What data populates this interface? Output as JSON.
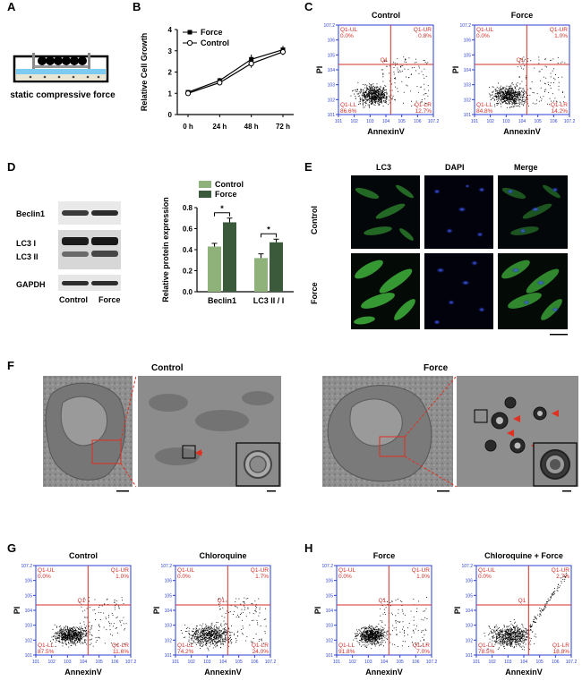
{
  "panels": {
    "A": {
      "letter": "A",
      "caption": "static compressive force"
    },
    "B": {
      "letter": "B"
    },
    "C": {
      "letter": "C"
    },
    "D": {
      "letter": "D",
      "blot_rows": [
        "Beclin1",
        "LC3 I",
        "LC3 II",
        "GAPDH"
      ],
      "lanes": [
        "Control",
        "Force"
      ]
    },
    "E": {
      "letter": "E",
      "columns": [
        "LC3",
        "DAPI",
        "Merge"
      ],
      "rows": [
        "Control",
        "Force"
      ]
    },
    "F": {
      "letter": "F",
      "groups": [
        "Control",
        "Force"
      ]
    },
    "G": {
      "letter": "G"
    },
    "H": {
      "letter": "H"
    }
  },
  "flow": {
    "xlabel": "AnnexinV",
    "ylabel": "PI",
    "gate_label": "Q1",
    "ticks": [
      "10^1",
      "10^2",
      "10^3",
      "10^4",
      "10^5",
      "10^6",
      "10^7.2"
    ],
    "plots": [
      {
        "id": "c1",
        "title": "Control",
        "UL": "Q1-UL\n0.0%",
        "UR": "Q1-UR\n0.8%",
        "LL": "Q1-LL\n86.6%",
        "LR": "Q1-LR\n12.7%"
      },
      {
        "id": "c2",
        "title": "Force",
        "UL": "Q1-UL\n0.0%",
        "UR": "Q1-UR\n1.0%",
        "LL": "Q1-LL\n84.8%",
        "LR": "Q1-LR\n14.2%"
      },
      {
        "id": "g1",
        "title": "Control",
        "UL": "Q1-UL\n0.0%",
        "UR": "Q1-UR\n1.0%",
        "LL": "Q1-LL\n87.5%",
        "LR": "Q1-LR\n11.6%"
      },
      {
        "id": "g2",
        "title": "Chloroquine",
        "UL": "Q1-UL\n0.0%",
        "UR": "Q1-UR\n1.7%",
        "LL": "Q1-LL\n74.2%",
        "LR": "Q1-LR\n24.0%"
      },
      {
        "id": "h1",
        "title": "Force",
        "UL": "Q1-UL\n0.0%",
        "UR": "Q1-UR\n1.0%",
        "LL": "Q1-LL\n91.8%",
        "LR": "Q1-LR\n7.0%"
      },
      {
        "id": "h2",
        "title": "Chloroquine + Force",
        "UL": "Q1-UL\n0.0%",
        "UR": "Q1-UR\n2.7%",
        "LL": "Q1-LL\n78.5%",
        "LR": "Q1-LR\n18.8%"
      }
    ]
  },
  "chart_data": [
    {
      "type": "line",
      "xlabel": "",
      "ylabel": "Relative Cell Growth",
      "categories": [
        "0 h",
        "24 h",
        "48 h",
        "72 h"
      ],
      "ylim": [
        0,
        4
      ],
      "yticks": [
        0,
        1,
        2,
        3,
        4
      ],
      "legend_position": "top-left",
      "series": [
        {
          "name": "Force",
          "values": [
            1.05,
            1.6,
            2.6,
            3.05
          ],
          "err": [
            0.05,
            0.12,
            0.22,
            0.18
          ]
        },
        {
          "name": "Control",
          "values": [
            1.0,
            1.5,
            2.4,
            2.95
          ],
          "err": [
            0.05,
            0.1,
            0.2,
            0.15
          ]
        }
      ]
    },
    {
      "type": "bar",
      "xlabel": "",
      "ylabel": "Relative protein expression",
      "categories": [
        "Beclin1",
        "LC3 II / I"
      ],
      "ylim": [
        0,
        0.8
      ],
      "yticks": [
        0.0,
        0.2,
        0.4,
        0.6,
        0.8
      ],
      "legend_position": "top",
      "significance": [
        "*",
        "*"
      ],
      "series": [
        {
          "name": "Control",
          "values": [
            0.43,
            0.32
          ],
          "err": [
            0.03,
            0.04
          ],
          "color": "#8fb27a"
        },
        {
          "name": "Force",
          "values": [
            0.66,
            0.47
          ],
          "err": [
            0.04,
            0.03
          ],
          "color": "#3b5a3c"
        }
      ]
    }
  ]
}
